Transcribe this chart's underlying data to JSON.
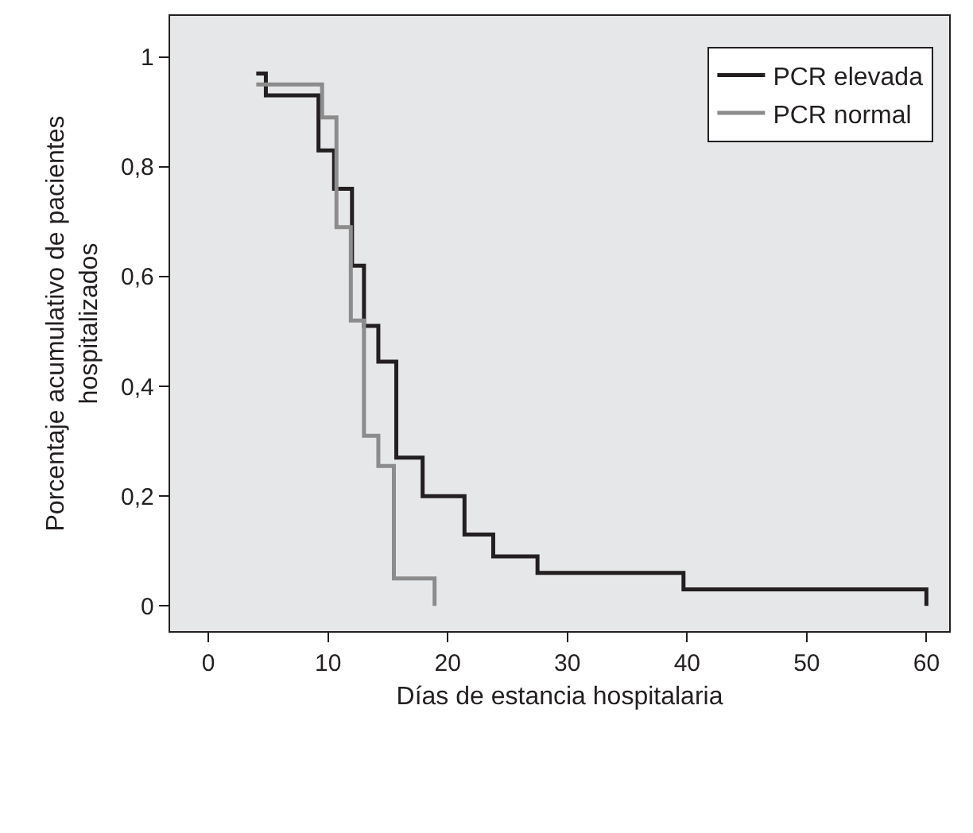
{
  "chart_data": {
    "type": "step",
    "xlabel": "Días de estancia hospitalaria",
    "ylabel": "Porcentaje acumulativo de pacientes hospitalizados",
    "series": [
      {
        "name": "PCR elevada",
        "color": "#231f20",
        "x": [
          4,
          4.8,
          9.2,
          10.5,
          12,
          13,
          14.2,
          15.7,
          17.9,
          21.4,
          23.8,
          27.5,
          39.7,
          60
        ],
        "values": [
          0.97,
          0.93,
          0.83,
          0.76,
          0.62,
          0.51,
          0.445,
          0.27,
          0.2,
          0.13,
          0.09,
          0.06,
          0.03,
          0
        ]
      },
      {
        "name": "PCR normal",
        "color": "#8c8c8c",
        "x": [
          4,
          9.5,
          10.7,
          11.9,
          13,
          14.2,
          15.5,
          18.9
        ],
        "values": [
          0.95,
          0.89,
          0.69,
          0.52,
          0.31,
          0.255,
          0.05,
          0
        ]
      }
    ],
    "xlim": [
      -3.2,
      61.9
    ],
    "xticks": [
      0,
      10,
      20,
      30,
      40,
      50,
      60
    ],
    "ylim": [
      -0.046,
      1.075
    ],
    "yticks": [
      {
        "value": 0,
        "label": "0"
      },
      {
        "value": 0.2,
        "label": "0,2"
      },
      {
        "value": 0.4,
        "label": "0,4"
      },
      {
        "value": 0.6,
        "label": "0,6"
      },
      {
        "value": 0.8,
        "label": "0,8"
      },
      {
        "value": 1,
        "label": "1"
      }
    ],
    "grid": false,
    "legend": "top right",
    "marker": "none",
    "line_style": "solid"
  }
}
